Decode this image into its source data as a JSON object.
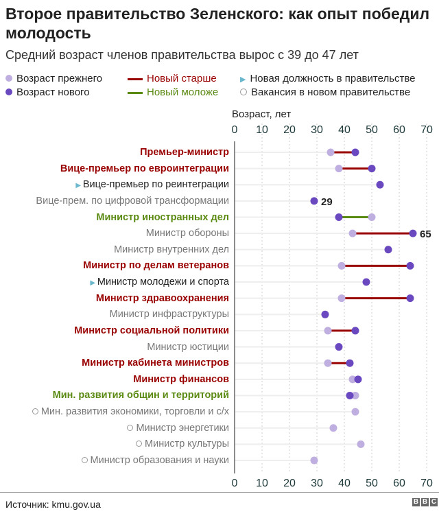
{
  "title": "Второе правительство Зеленского: как опыт победил молодость",
  "subtitle": "Средний возраст членов правительства вырос с 39 до 47 лет",
  "legend": {
    "old": "Возраст прежнего",
    "new": "Возраст нового",
    "older": "Новый старше",
    "younger": "Новый моложе",
    "new_post": "Новая должность в правительстве",
    "vacancy": "Вакансия в новом правительстве"
  },
  "source": "Источник: kmu.gov.ua",
  "logo": "BBC",
  "colors": {
    "old": "#bfaee0",
    "new": "#6a48c0",
    "older": "#990000",
    "younger": "#5b8a12",
    "gray": "#777777"
  },
  "chart_data": {
    "type": "dumbbell",
    "xlabel": "Возраст, лет",
    "xlim": [
      0,
      70
    ],
    "xticks": [
      0,
      10,
      20,
      30,
      40,
      50,
      60,
      70
    ],
    "grid": true,
    "rows": [
      {
        "label": "Премьер-министр",
        "old": 35,
        "new": 44,
        "kind": "older"
      },
      {
        "label": "Вице-премьер по евроинтеграции",
        "old": 38,
        "new": 50,
        "kind": "older"
      },
      {
        "label": "Вице-премьер по реинтеграции",
        "old": null,
        "new": 53,
        "kind": "new_post"
      },
      {
        "label": "Вице-прем. по цифровой трансформации",
        "old": null,
        "new": 29,
        "kind": "same",
        "annotation": "29"
      },
      {
        "label": "Министр иностранных дел",
        "old": 50,
        "new": 38,
        "kind": "younger"
      },
      {
        "label": "Министр обороны",
        "old": 43,
        "new": 65,
        "kind": "older_plain",
        "annotation": "65"
      },
      {
        "label": "Министр внутренних дел",
        "old": null,
        "new": 56,
        "kind": "same"
      },
      {
        "label": "Министр по делам ветеранов",
        "old": 39,
        "new": 64,
        "kind": "older"
      },
      {
        "label": "Министр молодежи и спорта",
        "old": null,
        "new": 48,
        "kind": "new_post"
      },
      {
        "label": "Министр здравоохранения",
        "old": 39,
        "new": 64,
        "kind": "older"
      },
      {
        "label": "Министр инфраструктуры",
        "old": null,
        "new": 33,
        "kind": "same"
      },
      {
        "label": "Министр социальной политики",
        "old": 34,
        "new": 44,
        "kind": "older"
      },
      {
        "label": "Министр юстиции",
        "old": null,
        "new": 38,
        "kind": "same"
      },
      {
        "label": "Министр кабинета министров",
        "old": 34,
        "new": 42,
        "kind": "older"
      },
      {
        "label": "Министр финансов",
        "old": 43,
        "new": 45,
        "kind": "older"
      },
      {
        "label": "Мин. развития общин и территорий",
        "old": 44,
        "new": 42,
        "kind": "younger"
      },
      {
        "label": "Мин. развития экономики, торговли и с/х",
        "old": 44,
        "new": null,
        "kind": "vacancy"
      },
      {
        "label": "Министр энергетики",
        "old": 36,
        "new": null,
        "kind": "vacancy"
      },
      {
        "label": "Министр культуры",
        "old": 46,
        "new": null,
        "kind": "vacancy"
      },
      {
        "label": "Министр образования и науки",
        "old": 29,
        "new": null,
        "kind": "vacancy"
      }
    ]
  }
}
